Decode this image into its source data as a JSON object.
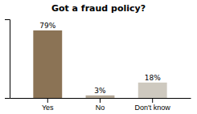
{
  "chart_data": {
    "type": "bar",
    "title": "Got a fraud policy?",
    "categories": [
      "Yes",
      "No",
      "Don't know"
    ],
    "values": [
      79,
      3,
      18
    ],
    "value_labels": [
      "79%",
      "3%",
      "18%"
    ],
    "colors": [
      "#8B7355",
      "#B5AA9A",
      "#CEC9BF"
    ],
    "ylim": [
      0,
      92
    ],
    "data_labels": true,
    "tick_labels": "x"
  }
}
